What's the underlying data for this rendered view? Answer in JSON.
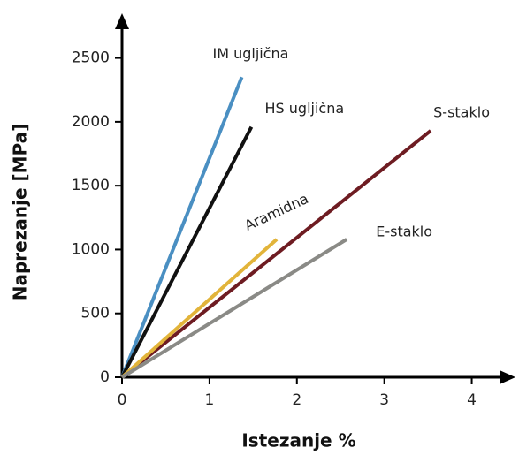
{
  "chart_data": {
    "type": "line",
    "x_label": "Istezanje %",
    "y_label": "Naprezanje [MPa]",
    "xlim": [
      0,
      4.5
    ],
    "xticks": [
      0,
      1,
      2,
      3,
      4
    ],
    "ylim": [
      0,
      2850
    ],
    "yticks": [
      0,
      500,
      1000,
      1500,
      2000,
      2500
    ],
    "series": [
      {
        "name": "IM ugljična",
        "color": "#4a8fc2",
        "x": [
          0,
          1.37
        ],
        "values": [
          0,
          2350
        ]
      },
      {
        "name": "HS ugljična",
        "color": "#111111",
        "x": [
          0,
          1.48
        ],
        "values": [
          0,
          1960
        ]
      },
      {
        "name": "S-staklo",
        "color": "#6e1c22",
        "x": [
          0,
          3.53
        ],
        "values": [
          0,
          1930
        ]
      },
      {
        "name": "Aramidna",
        "color": "#e2b43a",
        "x": [
          0,
          1.77
        ],
        "values": [
          0,
          1080
        ]
      },
      {
        "name": "E-staklo",
        "color": "#8a8a86",
        "x": [
          0,
          2.57
        ],
        "values": [
          0,
          1080
        ]
      }
    ]
  }
}
